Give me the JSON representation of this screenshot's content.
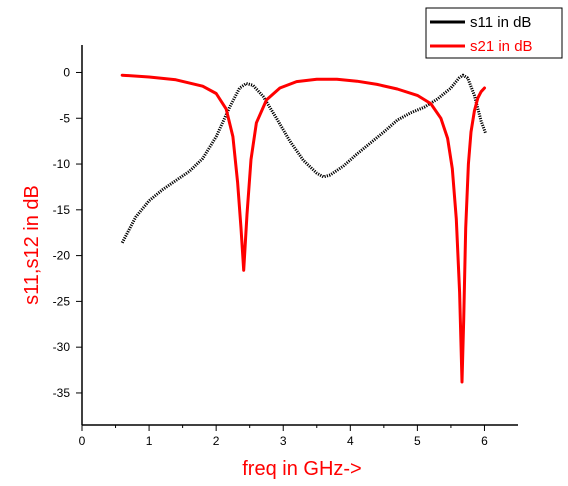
{
  "chart_data": {
    "type": "line",
    "xlabel": "freq in GHz->",
    "ylabel": "s11,s12 in dB",
    "xlim": [
      0,
      6.5
    ],
    "ylim": [
      -38.5,
      3
    ],
    "xticks": [
      0,
      1,
      2,
      3,
      4,
      5,
      6
    ],
    "yticks": [
      0,
      -5,
      -10,
      -15,
      -20,
      -25,
      -30,
      -35
    ],
    "grid": false,
    "legend_position": "top-right",
    "series": [
      {
        "name": "s11 in dB",
        "color": "#000000",
        "line_style": "dotted",
        "legend_color": "#000000",
        "points": [
          [
            0.6,
            -18.6
          ],
          [
            0.8,
            -15.8
          ],
          [
            1.0,
            -14.0
          ],
          [
            1.2,
            -12.8
          ],
          [
            1.4,
            -11.8
          ],
          [
            1.6,
            -10.8
          ],
          [
            1.8,
            -9.4
          ],
          [
            2.0,
            -7.0
          ],
          [
            2.2,
            -3.8
          ],
          [
            2.35,
            -1.7
          ],
          [
            2.45,
            -1.2
          ],
          [
            2.55,
            -1.4
          ],
          [
            2.7,
            -2.6
          ],
          [
            2.9,
            -5.0
          ],
          [
            3.1,
            -7.5
          ],
          [
            3.3,
            -9.6
          ],
          [
            3.5,
            -11.0
          ],
          [
            3.6,
            -11.4
          ],
          [
            3.7,
            -11.2
          ],
          [
            3.9,
            -10.2
          ],
          [
            4.1,
            -8.9
          ],
          [
            4.3,
            -7.7
          ],
          [
            4.5,
            -6.5
          ],
          [
            4.7,
            -5.2
          ],
          [
            4.9,
            -4.4
          ],
          [
            5.1,
            -3.8
          ],
          [
            5.3,
            -2.9
          ],
          [
            5.5,
            -1.7
          ],
          [
            5.62,
            -0.6
          ],
          [
            5.68,
            -0.3
          ],
          [
            5.75,
            -0.6
          ],
          [
            5.85,
            -2.5
          ],
          [
            5.95,
            -5.3
          ],
          [
            6.02,
            -6.7
          ]
        ]
      },
      {
        "name": "s21 in dB",
        "color": "#ff0000",
        "line_style": "solid",
        "legend_color": "#ff0000",
        "points": [
          [
            0.6,
            -0.3
          ],
          [
            1.0,
            -0.5
          ],
          [
            1.4,
            -0.8
          ],
          [
            1.8,
            -1.5
          ],
          [
            2.0,
            -2.3
          ],
          [
            2.15,
            -4.0
          ],
          [
            2.25,
            -7.0
          ],
          [
            2.32,
            -12.0
          ],
          [
            2.37,
            -17.0
          ],
          [
            2.41,
            -21.6
          ],
          [
            2.46,
            -15.5
          ],
          [
            2.52,
            -9.5
          ],
          [
            2.6,
            -5.5
          ],
          [
            2.75,
            -3.0
          ],
          [
            2.95,
            -1.7
          ],
          [
            3.2,
            -1.0
          ],
          [
            3.5,
            -0.75
          ],
          [
            3.8,
            -0.75
          ],
          [
            4.1,
            -0.95
          ],
          [
            4.4,
            -1.3
          ],
          [
            4.7,
            -1.8
          ],
          [
            5.0,
            -2.5
          ],
          [
            5.2,
            -3.4
          ],
          [
            5.35,
            -5.0
          ],
          [
            5.45,
            -7.2
          ],
          [
            5.52,
            -10.5
          ],
          [
            5.58,
            -16.0
          ],
          [
            5.63,
            -24.0
          ],
          [
            5.665,
            -33.8
          ],
          [
            5.69,
            -27.0
          ],
          [
            5.72,
            -17.0
          ],
          [
            5.76,
            -10.0
          ],
          [
            5.8,
            -6.5
          ],
          [
            5.85,
            -4.2
          ],
          [
            5.9,
            -2.8
          ],
          [
            5.95,
            -2.1
          ],
          [
            6.0,
            -1.7
          ]
        ]
      }
    ]
  }
}
